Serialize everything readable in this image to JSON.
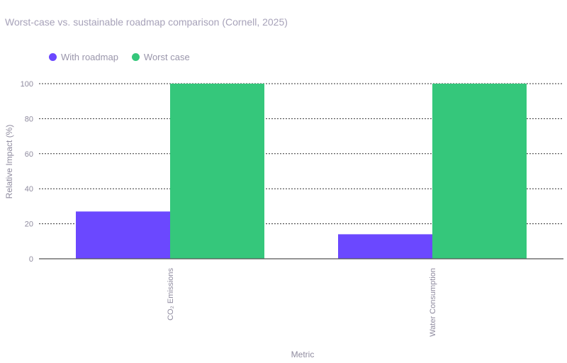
{
  "chart_data": {
    "type": "bar",
    "title": "Worst-case vs. sustainable roadmap comparison (Cornell, 2025)",
    "xlabel": "Metric",
    "ylabel": "Relative Impact (%)",
    "categories": [
      "CO₂ Emissions",
      "Water Consumption"
    ],
    "series": [
      {
        "name": "With roadmap",
        "values": [
          27,
          14
        ],
        "color": "#6b48ff"
      },
      {
        "name": "Worst case",
        "values": [
          100,
          100
        ],
        "color": "#35c77b"
      }
    ],
    "ylim": [
      0,
      100
    ],
    "yticks": [
      0,
      20,
      40,
      60,
      80,
      100
    ],
    "grid": "horizontal-dotted",
    "legend_position": "top-left"
  }
}
